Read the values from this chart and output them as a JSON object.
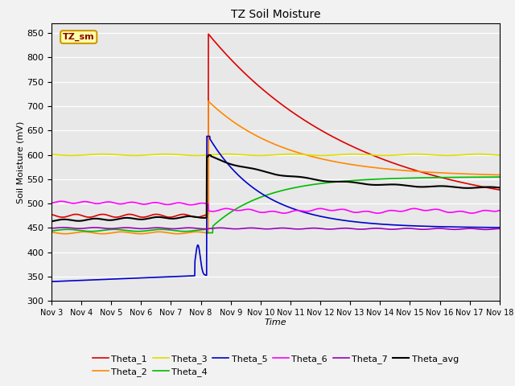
{
  "title": "TZ Soil Moisture",
  "xlabel": "Time",
  "ylabel": "Soil Moisture (mV)",
  "ylim": [
    300,
    870
  ],
  "yticks": [
    300,
    350,
    400,
    450,
    500,
    550,
    600,
    650,
    700,
    750,
    800,
    850
  ],
  "legend_label": "TZ_sm",
  "facecolor": "#e8e8e8",
  "series": {
    "Theta_1": {
      "color": "#dd0000",
      "lw": 1.2
    },
    "Theta_2": {
      "color": "#ff8800",
      "lw": 1.2
    },
    "Theta_3": {
      "color": "#dddd00",
      "lw": 1.2
    },
    "Theta_4": {
      "color": "#00bb00",
      "lw": 1.2
    },
    "Theta_5": {
      "color": "#0000cc",
      "lw": 1.2
    },
    "Theta_6": {
      "color": "#ff00ff",
      "lw": 1.2
    },
    "Theta_7": {
      "color": "#9900bb",
      "lw": 1.2
    },
    "Theta_avg": {
      "color": "#000000",
      "lw": 1.5
    }
  }
}
